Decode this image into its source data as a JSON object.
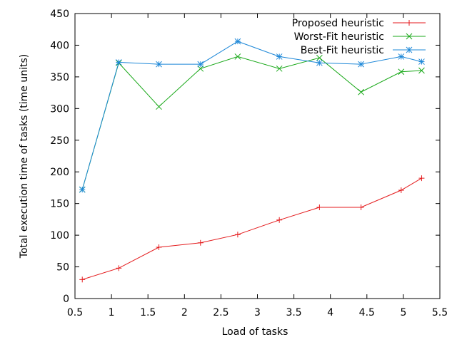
{
  "chart_data": {
    "type": "line",
    "xlabel": "Load of tasks",
    "ylabel": "Total execution time of tasks (time units)",
    "xlim": [
      0.5,
      5.5
    ],
    "ylim": [
      0,
      450
    ],
    "xticks": [
      "0.5",
      "1",
      "1.5",
      "2",
      "2.5",
      "3",
      "3.5",
      "4",
      "4.5",
      "5",
      "5.5"
    ],
    "yticks": [
      "0",
      "50",
      "100",
      "150",
      "200",
      "250",
      "300",
      "350",
      "400",
      "450"
    ],
    "grid": false,
    "legend_position": "top-right",
    "series": [
      {
        "name": "Proposed heuristic",
        "color": "#e41a1c",
        "marker": "plus",
        "x": [
          0.6,
          1.1,
          1.65,
          2.22,
          2.73,
          3.3,
          3.85,
          4.42,
          4.97,
          5.25
        ],
        "y": [
          30,
          48,
          81,
          88,
          101,
          124,
          144,
          144,
          171,
          190
        ]
      },
      {
        "name": "Worst-Fit heuristic",
        "color": "#18a818",
        "marker": "cross",
        "x": [
          0.6,
          1.1,
          1.65,
          2.22,
          2.73,
          3.3,
          3.85,
          4.42,
          4.97,
          5.25
        ],
        "y": [
          172,
          372,
          303,
          363,
          382,
          363,
          380,
          326,
          358,
          360
        ]
      },
      {
        "name": "Best-Fit heuristic",
        "color": "#1e88d8",
        "marker": "star",
        "x": [
          0.6,
          1.1,
          1.65,
          2.22,
          2.73,
          3.3,
          3.85,
          4.42,
          4.97,
          5.25
        ],
        "y": [
          172,
          373,
          370,
          370,
          406,
          382,
          372,
          370,
          382,
          374
        ]
      }
    ]
  }
}
